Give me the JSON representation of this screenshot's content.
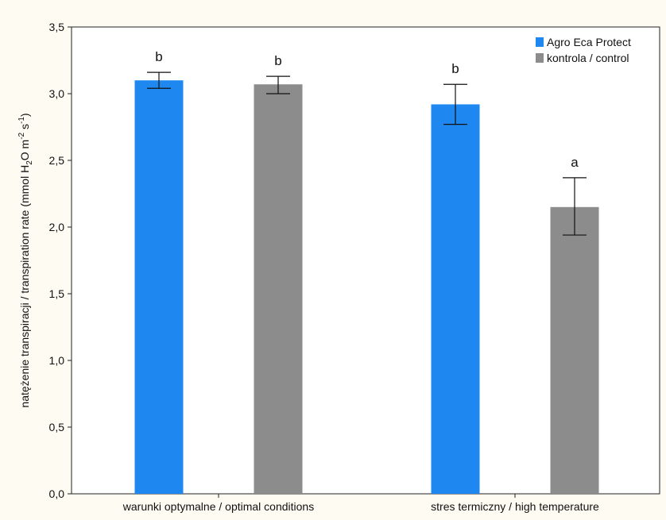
{
  "chart_data": {
    "type": "bar",
    "ylabel_parts": [
      "natężenie transpiracji / transpiration rate (mmol H",
      "2",
      "O m",
      "-2",
      " s",
      "-1",
      ")"
    ],
    "categories": [
      "warunki optymalne / optimal conditions",
      "stres termiczny / high temperature"
    ],
    "series": [
      {
        "name": "Agro Eca Protect",
        "color": "#1e88f0",
        "values": [
          3.1,
          2.92
        ],
        "err_low": [
          3.04,
          2.77
        ],
        "err_high": [
          3.16,
          3.07
        ],
        "labels": [
          "b",
          "b"
        ]
      },
      {
        "name": "kontrola / control",
        "color": "#8c8c8c",
        "values": [
          3.07,
          2.15
        ],
        "err_low": [
          3.0,
          1.94
        ],
        "err_high": [
          3.13,
          2.37
        ],
        "labels": [
          "b",
          "a"
        ]
      }
    ],
    "yticks": [
      "0,0",
      "0,5",
      "1,0",
      "1,5",
      "2,0",
      "2,5",
      "3,0",
      "3,5"
    ],
    "ylim": [
      0,
      3.5
    ],
    "grid": false,
    "legend_position": "top-right"
  }
}
